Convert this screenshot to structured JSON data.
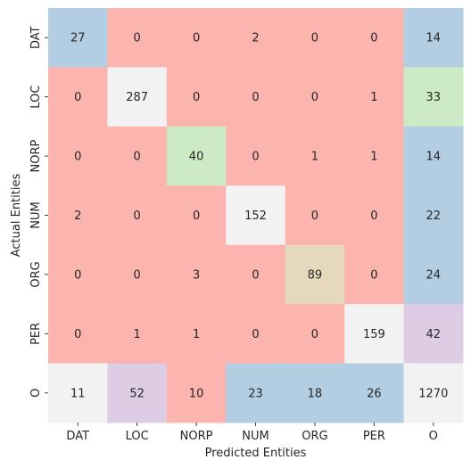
{
  "chart_data": {
    "type": "heatmap",
    "title": "",
    "xlabel": "Predicted Entities",
    "ylabel": "Actual Entities",
    "x_categories": [
      "DAT",
      "LOC",
      "NORP",
      "NUM",
      "ORG",
      "PER",
      "O"
    ],
    "y_categories": [
      "DAT",
      "LOC",
      "NORP",
      "NUM",
      "ORG",
      "PER",
      "O"
    ],
    "values": [
      [
        27,
        0,
        0,
        2,
        0,
        0,
        14
      ],
      [
        0,
        287,
        0,
        0,
        0,
        1,
        33
      ],
      [
        0,
        0,
        40,
        0,
        1,
        1,
        14
      ],
      [
        2,
        0,
        0,
        152,
        0,
        0,
        22
      ],
      [
        0,
        0,
        3,
        0,
        89,
        0,
        24
      ],
      [
        0,
        1,
        1,
        0,
        0,
        159,
        42
      ],
      [
        11,
        52,
        10,
        23,
        18,
        26,
        1270
      ]
    ],
    "cell_colors": [
      [
        "#b3cde3",
        "#fbb4ae",
        "#fbb4ae",
        "#fbb4ae",
        "#fbb4ae",
        "#fbb4ae",
        "#b3cde3"
      ],
      [
        "#fbb4ae",
        "#f2f2f2",
        "#fbb4ae",
        "#fbb4ae",
        "#fbb4ae",
        "#fbb4ae",
        "#ccebc5"
      ],
      [
        "#fbb4ae",
        "#fbb4ae",
        "#ccebc5",
        "#fbb4ae",
        "#fbb4ae",
        "#fbb4ae",
        "#b3cde3"
      ],
      [
        "#fbb4ae",
        "#fbb4ae",
        "#fbb4ae",
        "#f2f2f2",
        "#fbb4ae",
        "#fbb4ae",
        "#b3cde3"
      ],
      [
        "#fbb4ae",
        "#fbb4ae",
        "#fbb4ae",
        "#fbb4ae",
        "#e5d8bd",
        "#fbb4ae",
        "#b3cde3"
      ],
      [
        "#fbb4ae",
        "#fbb4ae",
        "#fbb4ae",
        "#fbb4ae",
        "#fbb4ae",
        "#f2f2f2",
        "#decbe4"
      ],
      [
        "#f2f2f2",
        "#decbe4",
        "#fbb4ae",
        "#b3cde3",
        "#b3cde3",
        "#b3cde3",
        "#f2f2f2"
      ]
    ],
    "colormap": "Pastel1",
    "colorbar": false,
    "grid": false,
    "legend": "none"
  }
}
